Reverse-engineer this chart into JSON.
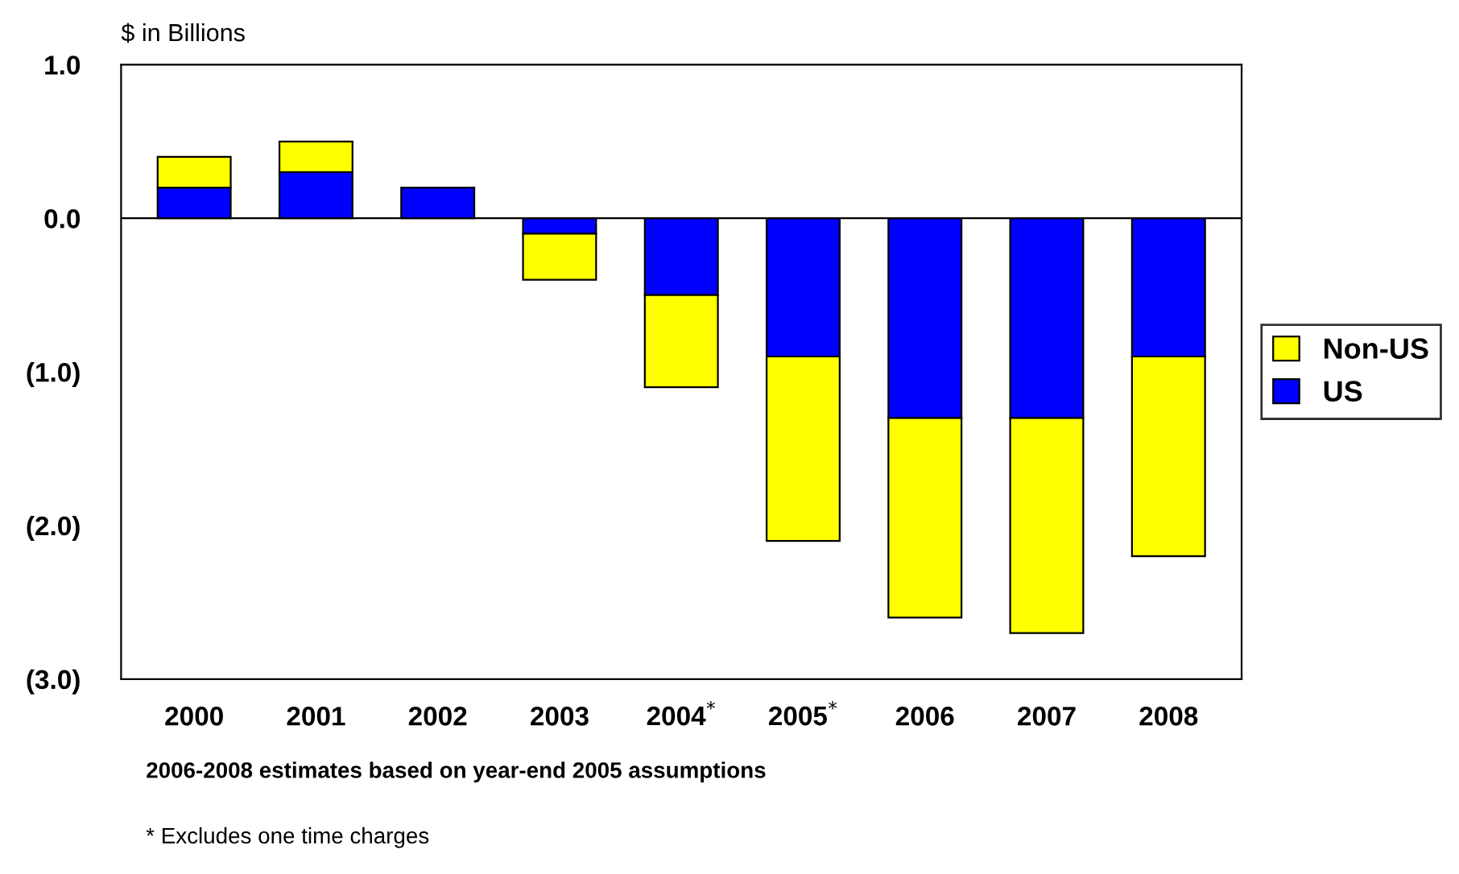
{
  "chart_data": {
    "type": "bar",
    "stacked": true,
    "ylabel": "$ in Billions",
    "categories": [
      "2000",
      "2001",
      "2002",
      "2003",
      "2004$^{*}$",
      "2005$^{*}$",
      "2006",
      "2007",
      "2008"
    ],
    "series": [
      {
        "name": "US",
        "color": "#0000ff",
        "values": [
          0.2,
          0.3,
          0.2,
          -0.1,
          -0.5,
          -0.9,
          -1.3,
          -1.3,
          -0.9
        ]
      },
      {
        "name": "Non-US",
        "color": "#ffff00",
        "values": [
          0.2,
          0.2,
          0,
          -0.3,
          -0.6,
          -1.2,
          -1.3,
          -1.4,
          -1.3
        ]
      }
    ],
    "ylim": [
      -3.0,
      1.0
    ],
    "yticks": [
      {
        "value": 1.0,
        "label": "1.0"
      },
      {
        "value": 0.0,
        "label": "0.0"
      },
      {
        "value": -1.0,
        "label": "(1.0)"
      },
      {
        "value": -2.0,
        "label": "(2.0)"
      },
      {
        "value": -3.0,
        "label": "(3.0)"
      }
    ],
    "grid": false,
    "legend": "right",
    "ref_lines": [
      {
        "axis": "y",
        "value": 0,
        "color": "#000000"
      }
    ],
    "annotations": [
      "2006-2008 estimates based on year-end 2005 assumptions",
      "* Excludes one time charges"
    ]
  }
}
